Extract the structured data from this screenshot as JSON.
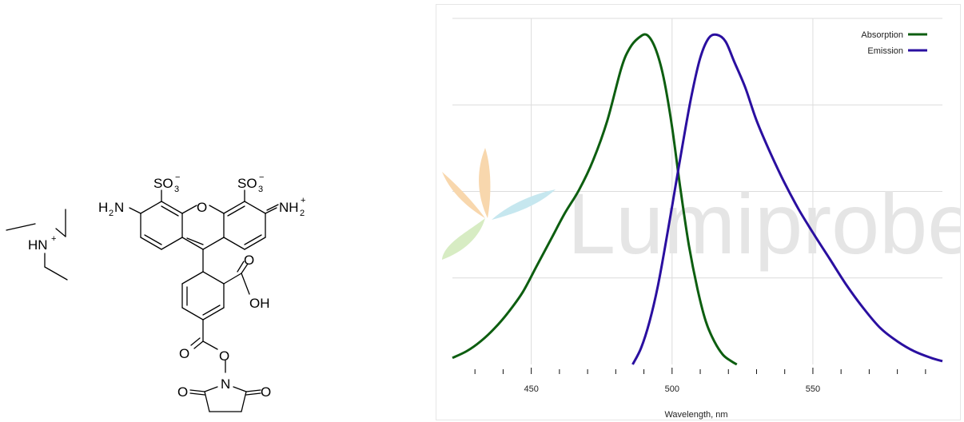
{
  "structure": {
    "labels": {
      "hn": "HN",
      "hn_charge": "+",
      "so3_left": "SO",
      "so3_right": "SO",
      "so3_sub": "3",
      "so3_charge": "−",
      "h2n": "H",
      "h2n_sub": "2",
      "h2n_n": "N",
      "ring_o": "O",
      "nh2": "NH",
      "nh2_sub": "2",
      "nh2_charge": "+",
      "carbonyl_o": "O",
      "oh": "OH",
      "ester_o_double": "O",
      "ester_o": "O",
      "imide_n": "N",
      "imide_o_left": "O",
      "imide_o_right": "O"
    }
  },
  "watermark": {
    "text": "Lumiprobe",
    "colors": [
      "#f8d7ad",
      "#c6e7ef",
      "#d7ecc3"
    ]
  },
  "chart_data": {
    "type": "line",
    "xlabel": "Wavelength, nm",
    "ylabel": "",
    "xlim": [
      422,
      596
    ],
    "ylim": [
      0,
      1.05
    ],
    "x_ticks": [
      450,
      500,
      550
    ],
    "x_tick_labels": [
      "450",
      "500",
      "550"
    ],
    "minor_tick_step": 10,
    "grid": true,
    "legend": "top-right",
    "series": [
      {
        "name": "Absorption",
        "color": "#0d5e10",
        "x": [
          422,
          427,
          432,
          437,
          442,
          447,
          452,
          457,
          462,
          467,
          472,
          477,
          482,
          485,
          488,
          491,
          494,
          497,
          500,
          503,
          506,
          509,
          512,
          515,
          518,
          521,
          523
        ],
        "y": [
          0.02,
          0.04,
          0.07,
          0.11,
          0.16,
          0.22,
          0.3,
          0.38,
          0.46,
          0.53,
          0.62,
          0.74,
          0.9,
          0.96,
          0.99,
          1.0,
          0.96,
          0.87,
          0.72,
          0.53,
          0.36,
          0.23,
          0.13,
          0.07,
          0.03,
          0.01,
          0.0
        ]
      },
      {
        "name": "Emission",
        "color": "#2a0fa0",
        "x": [
          486,
          489,
          492,
          495,
          498,
          501,
          504,
          507,
          510,
          513,
          516,
          519,
          522,
          526,
          530,
          535,
          540,
          545,
          550,
          556,
          562,
          568,
          574,
          580,
          586,
          592,
          596
        ],
        "y": [
          0.0,
          0.05,
          0.13,
          0.24,
          0.38,
          0.53,
          0.68,
          0.82,
          0.93,
          0.99,
          1.0,
          0.98,
          0.92,
          0.84,
          0.74,
          0.64,
          0.55,
          0.47,
          0.4,
          0.32,
          0.24,
          0.17,
          0.11,
          0.07,
          0.04,
          0.02,
          0.01
        ]
      }
    ]
  }
}
